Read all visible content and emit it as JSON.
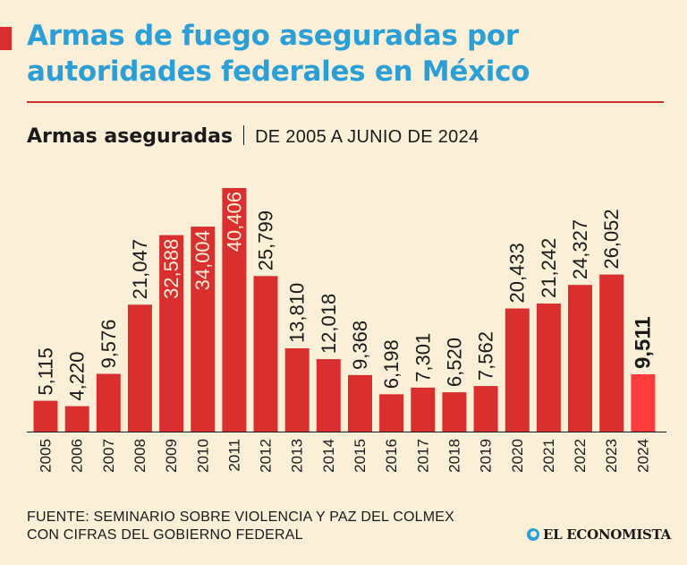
{
  "header": {
    "title": "Armas de fuego aseguradas por autoridades federales en México",
    "subtitle_main": "Armas aseguradas",
    "subtitle_range": "DE 2005 A JUNIO DE 2024"
  },
  "colors": {
    "bar": "#d9302f",
    "bar_highlight": "#ff3b3b",
    "title": "#2c9fd6",
    "background": "#fcefd8"
  },
  "chart_data": {
    "type": "bar",
    "categories": [
      "2005",
      "2006",
      "2007",
      "2008",
      "2009",
      "2010",
      "2011",
      "2012",
      "2013",
      "2014",
      "2015",
      "2016",
      "2017",
      "2018",
      "2019",
      "2020",
      "2021",
      "2022",
      "2023",
      "2024"
    ],
    "values": [
      5115,
      4220,
      9576,
      21047,
      32588,
      34004,
      40406,
      25799,
      13810,
      12018,
      9368,
      6198,
      7301,
      6520,
      7562,
      20433,
      21242,
      24327,
      26052,
      9511
    ],
    "value_labels": [
      "5,115",
      "4,220",
      "9,576",
      "21,047",
      "32,588",
      "34,004",
      "40,406",
      "25,799",
      "13,810",
      "12,018",
      "9,368",
      "6,198",
      "7,301",
      "6,520",
      "7,562",
      "20,433",
      "21,242",
      "24,327",
      "26,052",
      "9,511"
    ],
    "inside_label_indices": [
      4,
      5,
      6
    ],
    "highlight_index": 19,
    "ylim": [
      0,
      40406
    ],
    "grid": false,
    "title": "Armas aseguradas",
    "xlabel": "",
    "ylabel": ""
  },
  "footer": {
    "source_line1": "FUENTE: SEMINARIO SOBRE VIOLENCIA Y PAZ DEL COLMEX",
    "source_line2": "CON CIFRAS DEL GOBIERNO FEDERAL",
    "brand": "EL ECONOMISTA"
  }
}
